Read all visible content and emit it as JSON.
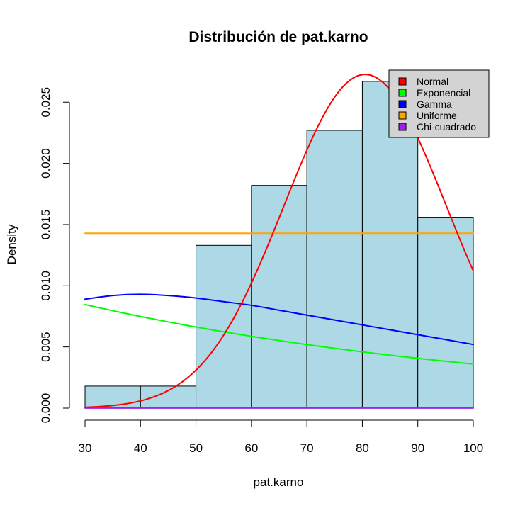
{
  "chart_data": {
    "type": "histogram",
    "title": "Distribución de pat.karno",
    "xlabel": "pat.karno",
    "ylabel": "Density",
    "xlim": [
      30,
      100
    ],
    "ylim": [
      0,
      0.0275
    ],
    "x_ticks": [
      30,
      40,
      50,
      60,
      70,
      80,
      90,
      100
    ],
    "x_tick_labels": [
      "30",
      "40",
      "50",
      "60",
      "70",
      "80",
      "90",
      "100"
    ],
    "y_ticks": [
      0,
      0.005,
      0.01,
      0.015,
      0.02,
      0.025
    ],
    "y_tick_labels": [
      "0.000",
      "0.005",
      "0.010",
      "0.015",
      "0.020",
      "0.025"
    ],
    "bar_color": "#ADD8E6",
    "bins": [
      {
        "from": 30,
        "to": 40,
        "density": 0.0018
      },
      {
        "from": 40,
        "to": 50,
        "density": 0.0018
      },
      {
        "from": 50,
        "to": 60,
        "density": 0.0133
      },
      {
        "from": 60,
        "to": 70,
        "density": 0.0182
      },
      {
        "from": 70,
        "to": 80,
        "density": 0.0227
      },
      {
        "from": 80,
        "to": 90,
        "density": 0.0267
      },
      {
        "from": 90,
        "to": 100,
        "density": 0.0156
      }
    ],
    "series": [
      {
        "name": "Normal",
        "color": "#FF0000",
        "kind": "normal",
        "mean": 80.5,
        "sd": 14.63,
        "x_range": [
          30,
          100
        ]
      },
      {
        "name": "Exponencial",
        "color": "#00FF00",
        "kind": "exponential",
        "rate": 0.0122,
        "x_range": [
          30,
          100
        ]
      },
      {
        "name": "Gamma",
        "color": "#0000FF",
        "kind": "points",
        "x": [
          30,
          35,
          40,
          45,
          50,
          55,
          60,
          65,
          70,
          75,
          80,
          85,
          90,
          95,
          100
        ],
        "y": [
          0.0089,
          0.0092,
          0.0093,
          0.0092,
          0.009,
          0.0087,
          0.0084,
          0.008,
          0.0076,
          0.0072,
          0.0068,
          0.0064,
          0.006,
          0.0056,
          0.0052
        ]
      },
      {
        "name": "Uniforme",
        "color": "#FFA500",
        "kind": "constant",
        "value": 0.01429,
        "x_range": [
          30,
          100
        ]
      },
      {
        "name": "Chi-cuadrado",
        "color": "#A020F0",
        "kind": "constant",
        "value": 1e-05,
        "x_range": [
          30,
          100
        ]
      }
    ],
    "legend": {
      "position": "top-right",
      "background": "#D3D3D3"
    }
  }
}
